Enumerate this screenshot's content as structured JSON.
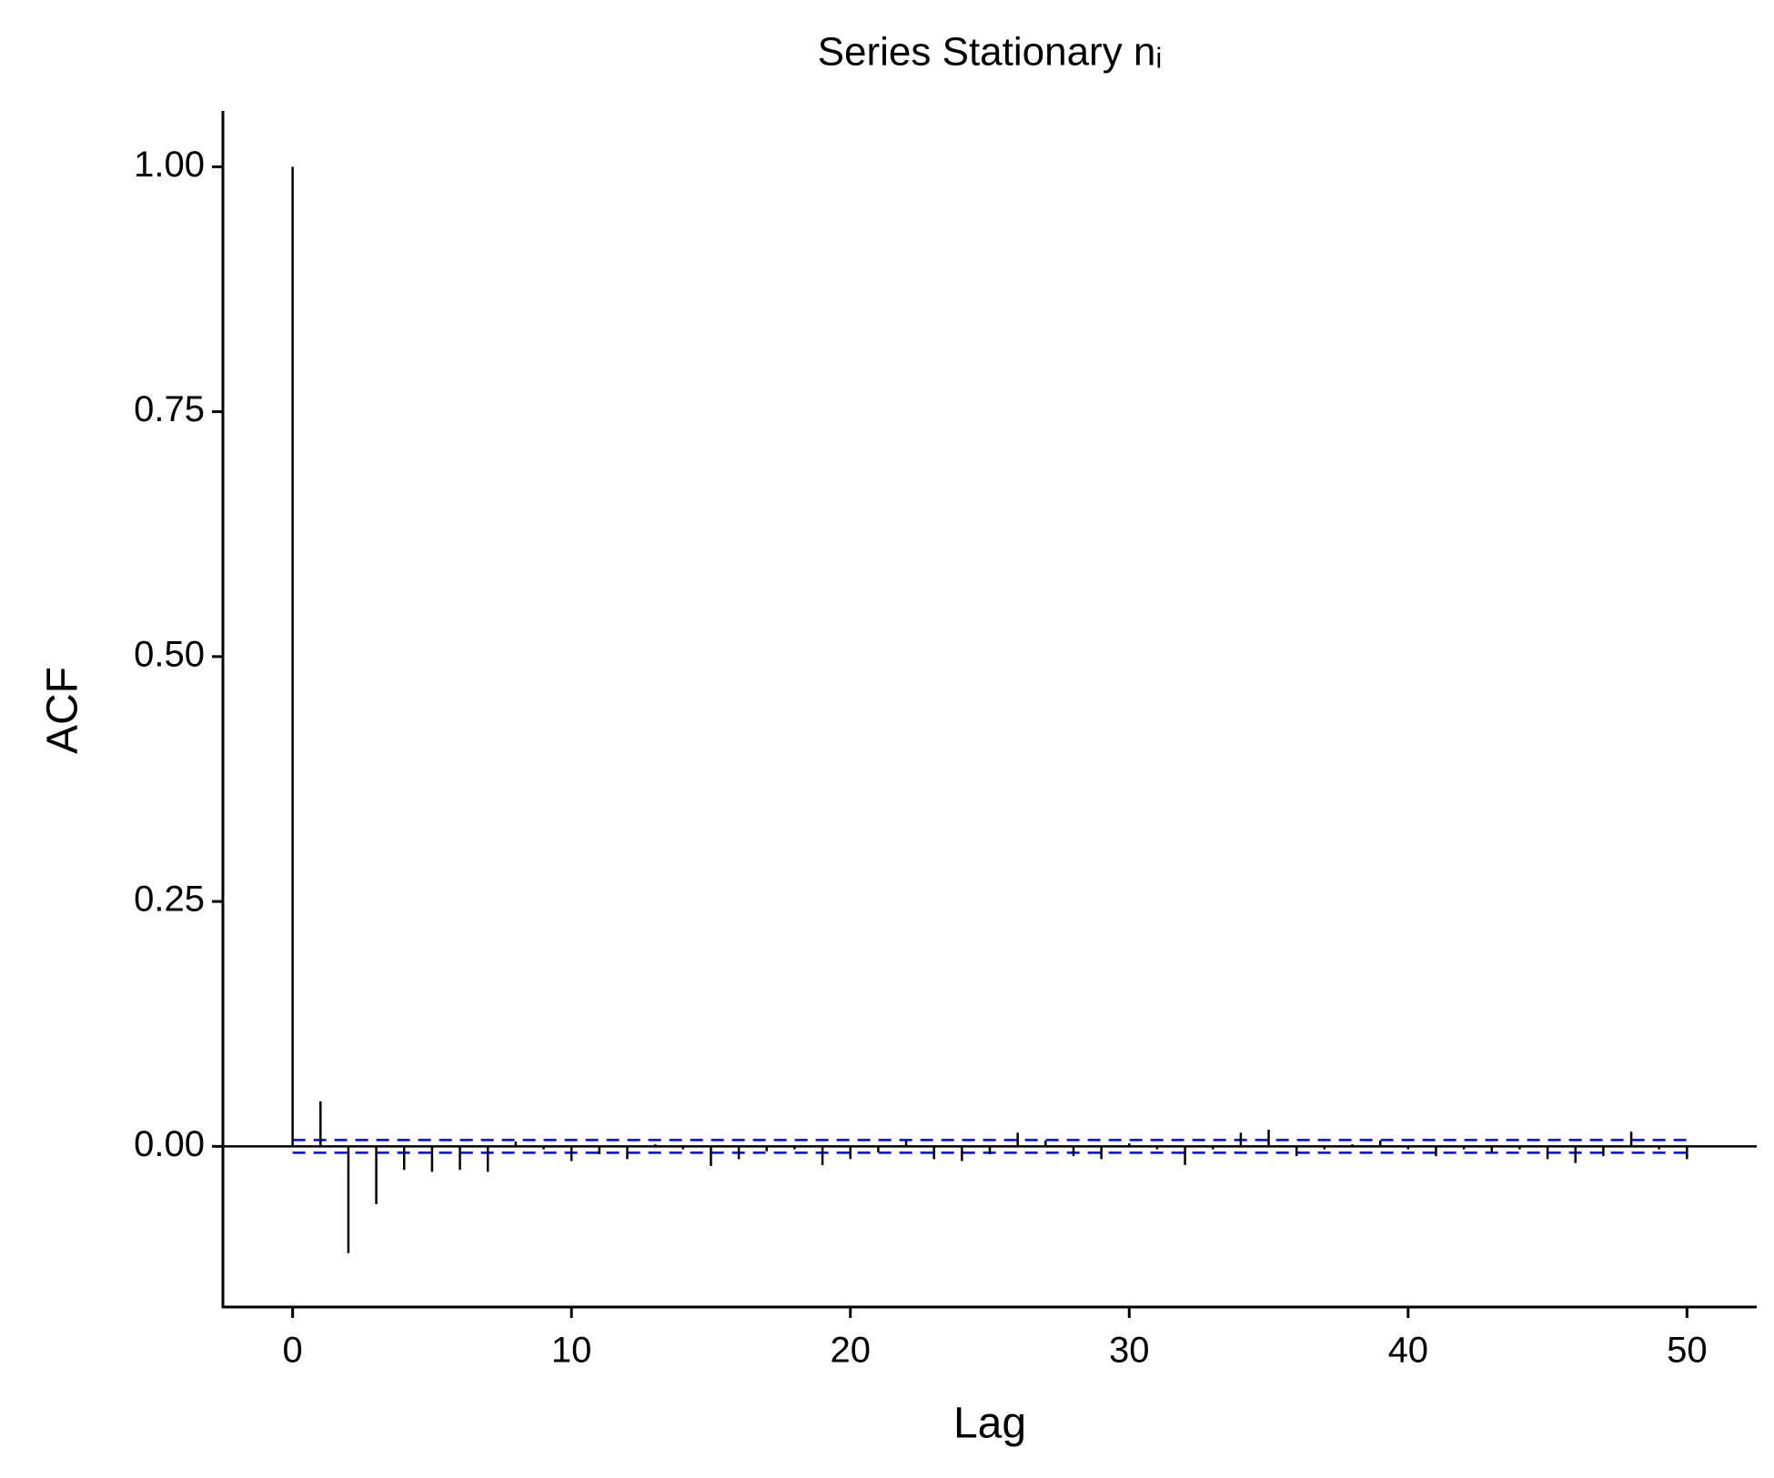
{
  "chart_data": {
    "type": "stem",
    "title": "Series Stationary nᵢ",
    "x_label": "Lag",
    "y_label": "ACF",
    "x": [
      0,
      1,
      2,
      3,
      4,
      5,
      6,
      7,
      8,
      9,
      10,
      11,
      12,
      13,
      14,
      15,
      16,
      17,
      18,
      19,
      20,
      21,
      22,
      23,
      24,
      25,
      26,
      27,
      28,
      29,
      30,
      31,
      32,
      33,
      34,
      35,
      36,
      37,
      38,
      39,
      40,
      41,
      42,
      43,
      44,
      45,
      46,
      47,
      48,
      49,
      50
    ],
    "values": [
      1.0,
      0.046,
      -0.109,
      -0.059,
      -0.024,
      -0.026,
      -0.024,
      -0.026,
      0.005,
      -0.003,
      -0.015,
      -0.008,
      -0.013,
      0.002,
      -0.003,
      -0.02,
      -0.013,
      -0.005,
      -0.003,
      -0.019,
      -0.013,
      -0.006,
      0.006,
      -0.013,
      -0.015,
      -0.008,
      0.014,
      0.006,
      -0.01,
      -0.013,
      0.003,
      -0.003,
      -0.019,
      -0.003,
      0.014,
      0.017,
      -0.01,
      -0.003,
      0.002,
      0.006,
      -0.003,
      -0.01,
      -0.003,
      -0.006,
      -0.003,
      -0.013,
      -0.017,
      -0.01,
      0.015,
      -0.003,
      -0.013
    ],
    "color": "#000000",
    "ci": [
      0.0065,
      -0.0065
    ],
    "ci_color": "#0000ff",
    "xlim": [
      -2.5,
      52.5
    ],
    "xticks": [
      0,
      10,
      20,
      30,
      40,
      50
    ],
    "ylim": [
      -0.164,
      1.057
    ],
    "yticks": [
      {
        "value": 0,
        "label": "0.00"
      },
      0.25,
      {
        "value": 0.5,
        "label": "0.50"
      },
      0.75,
      {
        "value": 1,
        "label": "1.00"
      }
    ]
  }
}
